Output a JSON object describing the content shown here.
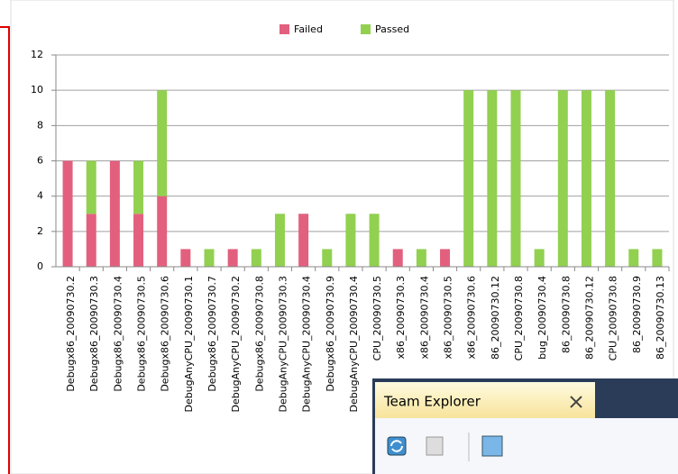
{
  "chart_data": {
    "type": "stacked-bar",
    "categories": [
      "Debugx86_20090730.2",
      "Debugx86_20090730.3",
      "Debugx86_20090730.4",
      "Debugx86_20090730.5",
      "Debugx86_20090730.6",
      "DebugAnyCPU_20090730.1",
      "Debugx86_20090730.7",
      "DebugAnyCPU_20090730.2",
      "Debugx86_20090730.8",
      "DebugAnyCPU_20090730.3",
      "DebugAnyCPU_20090730.4",
      "Debugx86_20090730.9",
      "DebugAnyCPU_20090730.4",
      "CPU_20090730.5",
      "x86_20090730.3",
      "x86_20090730.4",
      "x86_20090730.5",
      "x86_20090730.6",
      "86_20090730.12",
      "CPU_20090730.8",
      "bug_20090730.4",
      "86_20090730.8",
      "86_20090730.12",
      "CPU_20090730.8",
      "86_20090730.9",
      "86_20090730.13"
    ],
    "series": [
      {
        "name": "Failed",
        "color": "#e2607e",
        "values": [
          6,
          3,
          6,
          3,
          4,
          1,
          0,
          1,
          0,
          0,
          3,
          0,
          0,
          0,
          1,
          0,
          1,
          0,
          0,
          0,
          0,
          0,
          0,
          0,
          0,
          0
        ]
      },
      {
        "name": "Passed",
        "color": "#92d050",
        "values": [
          0,
          3,
          0,
          3,
          6,
          0,
          1,
          0,
          1,
          3,
          0,
          1,
          3,
          3,
          0,
          1,
          0,
          10,
          10,
          10,
          1,
          10,
          10,
          10,
          1,
          1
        ]
      }
    ],
    "ylim": [
      0,
      12
    ],
    "yticks": [
      0,
      2,
      4,
      6,
      8,
      10,
      12
    ],
    "grid": true,
    "legend": "top"
  },
  "panel": {
    "title": "Team Explorer"
  }
}
